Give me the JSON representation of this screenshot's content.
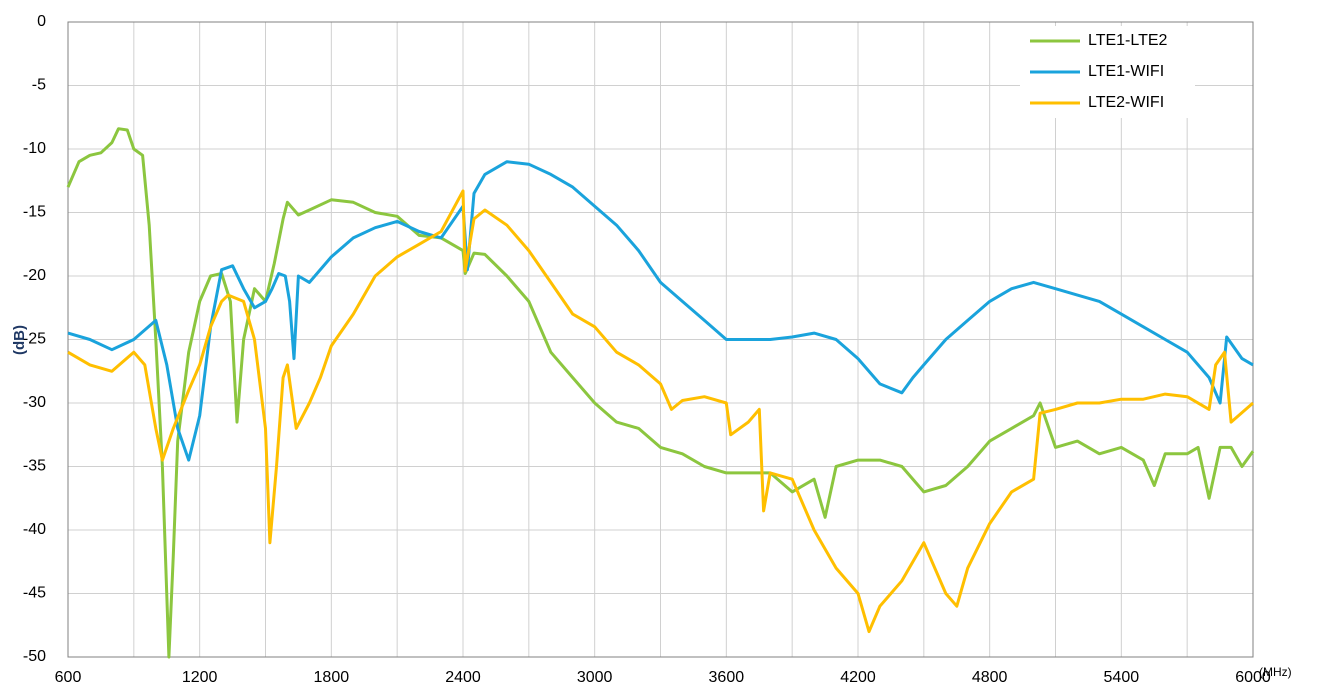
{
  "chart_data": {
    "type": "line",
    "xlabel": "(MHz)",
    "ylabel": "(dB)",
    "xlim": [
      600,
      6000
    ],
    "ylim": [
      -50,
      0
    ],
    "xticks": [
      600,
      1200,
      1800,
      2400,
      3000,
      3600,
      4200,
      4800,
      5400,
      6000
    ],
    "yticks": [
      0,
      -5,
      -10,
      -15,
      -20,
      -25,
      -30,
      -35,
      -40,
      -45,
      -50
    ],
    "grid": true,
    "legend": "top-right",
    "series": [
      {
        "name": "LTE1-LTE2",
        "color": "#8cc63f",
        "x": [
          600,
          650,
          700,
          750,
          800,
          830,
          870,
          900,
          940,
          970,
          1000,
          1030,
          1060,
          1080,
          1100,
          1150,
          1200,
          1250,
          1300,
          1340,
          1370,
          1400,
          1450,
          1500,
          1540,
          1580,
          1600,
          1650,
          1700,
          1800,
          1900,
          2000,
          2100,
          2200,
          2300,
          2400,
          2410,
          2450,
          2500,
          2600,
          2700,
          2800,
          2900,
          3000,
          3100,
          3200,
          3300,
          3400,
          3500,
          3600,
          3700,
          3800,
          3900,
          4000,
          4050,
          4100,
          4200,
          4300,
          4400,
          4500,
          4600,
          4700,
          4800,
          4900,
          5000,
          5030,
          5100,
          5200,
          5300,
          5400,
          5500,
          5550,
          5600,
          5700,
          5750,
          5800,
          5850,
          5900,
          5950,
          6000
        ],
        "values": [
          -13,
          -11,
          -10.5,
          -10.3,
          -9.5,
          -8.4,
          -8.5,
          -10,
          -10.5,
          -16,
          -25,
          -35,
          -50,
          -42,
          -33,
          -26,
          -22,
          -20,
          -19.8,
          -22,
          -31.5,
          -25,
          -21,
          -22,
          -19,
          -15.5,
          -14.2,
          -15.2,
          -14.8,
          -14,
          -14.2,
          -15,
          -15.3,
          -16.8,
          -17,
          -18,
          -19.8,
          -18.2,
          -18.3,
          -20,
          -22,
          -26,
          -28,
          -30,
          -31.5,
          -32,
          -33.5,
          -34,
          -35,
          -35.5,
          -35.5,
          -35.5,
          -37,
          -36,
          -39,
          -35,
          -34.5,
          -34.5,
          -35,
          -37,
          -36.5,
          -35,
          -33,
          -32,
          -31,
          -30,
          -33.5,
          -33,
          -34,
          -33.5,
          -34.5,
          -36.5,
          -34,
          -34,
          -33.5,
          -37.5,
          -33.5,
          -33.5,
          -35,
          -33.8
        ]
      },
      {
        "name": "LTE1-WIFI",
        "color": "#1aa3dc",
        "x": [
          600,
          700,
          800,
          900,
          1000,
          1050,
          1100,
          1150,
          1200,
          1250,
          1300,
          1350,
          1400,
          1450,
          1500,
          1530,
          1560,
          1590,
          1610,
          1630,
          1650,
          1700,
          1800,
          1900,
          2000,
          2100,
          2200,
          2300,
          2400,
          2420,
          2450,
          2500,
          2600,
          2700,
          2800,
          2900,
          3000,
          3100,
          3200,
          3300,
          3400,
          3500,
          3600,
          3700,
          3800,
          3900,
          4000,
          4100,
          4200,
          4300,
          4400,
          4450,
          4500,
          4600,
          4700,
          4800,
          4900,
          5000,
          5100,
          5200,
          5300,
          5400,
          5500,
          5600,
          5700,
          5800,
          5850,
          5880,
          5950,
          6000
        ],
        "values": [
          -24.5,
          -25,
          -25.8,
          -25,
          -23.5,
          -27,
          -32,
          -34.5,
          -31,
          -24,
          -19.5,
          -19.2,
          -21,
          -22.5,
          -22,
          -21,
          -19.8,
          -20,
          -22,
          -26.5,
          -20,
          -20.5,
          -18.5,
          -17,
          -16.2,
          -15.7,
          -16.5,
          -17,
          -14.5,
          -19.5,
          -13.5,
          -12,
          -11,
          -11.2,
          -12,
          -13,
          -14.5,
          -16,
          -18,
          -20.5,
          -22,
          -23.5,
          -25,
          -25,
          -25,
          -24.8,
          -24.5,
          -25,
          -26.5,
          -28.5,
          -29.2,
          -28,
          -27,
          -25,
          -23.5,
          -22,
          -21,
          -20.5,
          -21,
          -21.5,
          -22,
          -23,
          -24,
          -25,
          -26,
          -28,
          -30,
          -24.8,
          -26.5,
          -27
        ]
      },
      {
        "name": "LTE2-WIFI",
        "color": "#ffbf00",
        "x": [
          600,
          700,
          800,
          900,
          950,
          1000,
          1030,
          1080,
          1150,
          1200,
          1250,
          1300,
          1330,
          1400,
          1450,
          1500,
          1520,
          1550,
          1580,
          1600,
          1640,
          1700,
          1750,
          1800,
          1900,
          2000,
          2100,
          2200,
          2300,
          2400,
          2410,
          2450,
          2500,
          2600,
          2700,
          2800,
          2900,
          3000,
          3100,
          3200,
          3300,
          3350,
          3400,
          3500,
          3600,
          3620,
          3700,
          3750,
          3770,
          3800,
          3900,
          4000,
          4100,
          4200,
          4250,
          4300,
          4400,
          4500,
          4600,
          4650,
          4700,
          4800,
          4900,
          5000,
          5030,
          5100,
          5200,
          5300,
          5400,
          5500,
          5600,
          5700,
          5800,
          5830,
          5870,
          5900,
          6000
        ],
        "values": [
          -26,
          -27,
          -27.5,
          -26,
          -27,
          -32,
          -34.5,
          -32,
          -29,
          -27,
          -24,
          -22,
          -21.5,
          -22,
          -25,
          -32,
          -41,
          -35,
          -28,
          -27,
          -32,
          -30,
          -28,
          -25.5,
          -23,
          -20,
          -18.5,
          -17.5,
          -16.5,
          -13.3,
          -19.6,
          -15.5,
          -14.8,
          -16,
          -18,
          -20.5,
          -23,
          -24,
          -26,
          -27,
          -28.5,
          -30.5,
          -29.8,
          -29.5,
          -30,
          -32.5,
          -31.5,
          -30.5,
          -38.5,
          -35.5,
          -36,
          -40,
          -43,
          -45,
          -48,
          -46,
          -44,
          -41,
          -45,
          -46,
          -43,
          -39.5,
          -37,
          -36,
          -30.8,
          -30.5,
          -30,
          -30,
          -29.7,
          -29.7,
          -29.3,
          -29.5,
          -30.5,
          -27,
          -26,
          -31.5,
          -30
        ]
      }
    ]
  }
}
